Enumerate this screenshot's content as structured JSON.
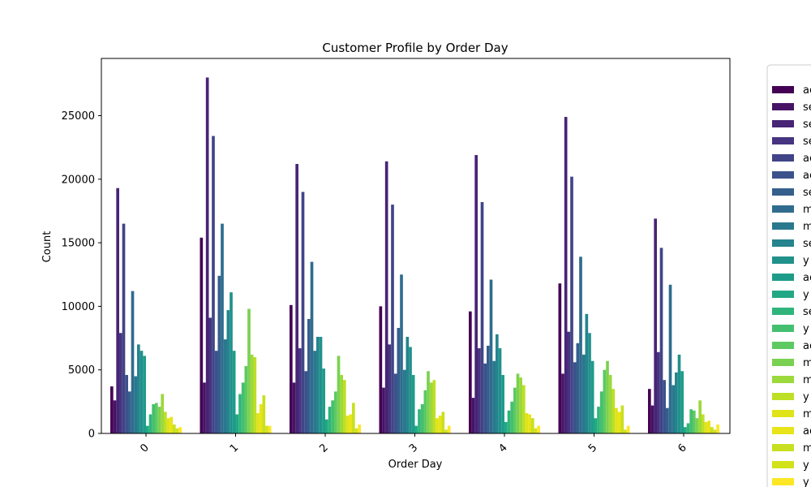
{
  "chart_data": {
    "type": "bar",
    "title": "Customer Profile by Order Day",
    "xlabel": "Order Day",
    "ylabel": "Count",
    "categories": [
      "0",
      "1",
      "2",
      "3",
      "4",
      "5",
      "6"
    ],
    "ylim": [
      0,
      29500
    ],
    "yticks": [
      0,
      5000,
      10000,
      15000,
      20000,
      25000
    ],
    "ytick_labels": [
      "0",
      "5000",
      "10000",
      "15000",
      "20000",
      "25000"
    ],
    "grid": false,
    "legend_position": "right, partially cut off",
    "palette": "viridis",
    "series": [
      {
        "name": "ac",
        "color": "#440154",
        "values": [
          3700,
          15400,
          10100,
          10000,
          9600,
          11800,
          3500
        ]
      },
      {
        "name": "se",
        "color": "#471365",
        "values": [
          2600,
          4000,
          4000,
          3600,
          2800,
          4700,
          2200
        ]
      },
      {
        "name": "se",
        "color": "#482475",
        "values": [
          19300,
          28000,
          21200,
          21400,
          21900,
          24900,
          16900
        ]
      },
      {
        "name": "se",
        "color": "#463480",
        "values": [
          7900,
          9100,
          6700,
          7000,
          6700,
          8000,
          6400
        ]
      },
      {
        "name": "ac",
        "color": "#414487",
        "values": [
          16500,
          23400,
          19000,
          18000,
          18200,
          20200,
          14600
        ]
      },
      {
        "name": "ac",
        "color": "#3b528b",
        "values": [
          4600,
          6500,
          4900,
          4700,
          5500,
          5600,
          4200
        ]
      },
      {
        "name": "se",
        "color": "#355f8d",
        "values": [
          3300,
          12400,
          9000,
          8300,
          6900,
          7100,
          2000
        ]
      },
      {
        "name": "m",
        "color": "#2f6c8e",
        "values": [
          11200,
          16500,
          13500,
          12500,
          12100,
          13900,
          11700
        ]
      },
      {
        "name": "m",
        "color": "#2a788e",
        "values": [
          4500,
          7400,
          6500,
          5000,
          5700,
          6200,
          3800
        ]
      },
      {
        "name": "se",
        "color": "#25848e",
        "values": [
          7000,
          9700,
          7600,
          7600,
          7800,
          9400,
          4800
        ]
      },
      {
        "name": "y",
        "color": "#21918c",
        "values": [
          6500,
          11100,
          7600,
          6800,
          6700,
          7900,
          6200
        ]
      },
      {
        "name": "ac",
        "color": "#1e9c89",
        "values": [
          6100,
          6500,
          5100,
          4600,
          4600,
          5700,
          4900
        ]
      },
      {
        "name": "y",
        "color": "#22a884",
        "values": [
          600,
          1500,
          1100,
          600,
          900,
          1200,
          500
        ]
      },
      {
        "name": "se",
        "color": "#2fb47c",
        "values": [
          1500,
          3100,
          2100,
          1900,
          1800,
          2100,
          800
        ]
      },
      {
        "name": "y",
        "color": "#44bf70",
        "values": [
          2300,
          4000,
          2600,
          2300,
          2500,
          3300,
          1900
        ]
      },
      {
        "name": "ac",
        "color": "#5ec962",
        "values": [
          2400,
          5300,
          3300,
          3400,
          3600,
          5000,
          1800
        ]
      },
      {
        "name": "m",
        "color": "#7ad151",
        "values": [
          2100,
          9800,
          6100,
          4900,
          4700,
          5700,
          1200
        ]
      },
      {
        "name": "m",
        "color": "#9bd93c",
        "values": [
          3100,
          6200,
          4600,
          4000,
          4400,
          4600,
          2600
        ]
      },
      {
        "name": "y",
        "color": "#bddf26",
        "values": [
          1700,
          6000,
          4200,
          4200,
          3800,
          3500,
          1500
        ]
      },
      {
        "name": "m",
        "color": "#dfe318",
        "values": [
          1200,
          1600,
          1400,
          1200,
          1600,
          2000,
          900
        ]
      },
      {
        "name": "ac",
        "color": "#e8e419",
        "values": [
          1300,
          2300,
          1500,
          1400,
          1500,
          1700,
          1000
        ]
      },
      {
        "name": "m",
        "color": "#c8e020",
        "values": [
          700,
          3000,
          2400,
          1700,
          1200,
          2200,
          500
        ]
      },
      {
        "name": "y",
        "color": "#d2e21b",
        "values": [
          400,
          600,
          400,
          300,
          400,
          300,
          300
        ]
      },
      {
        "name": "y",
        "color": "#fde725",
        "values": [
          500,
          600,
          700,
          600,
          600,
          600,
          700
        ]
      }
    ]
  }
}
